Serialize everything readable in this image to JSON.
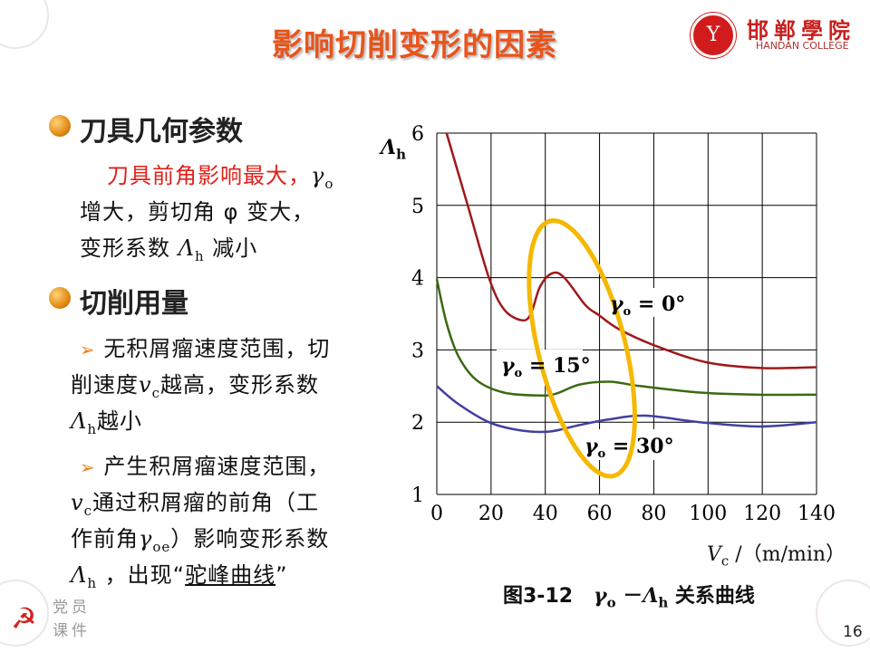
{
  "title": "影响切削变形的因素",
  "logo": {
    "cn": "邯郸學院",
    "en": "HANDAN COLLEGE"
  },
  "section1": {
    "heading": "刀具几何参数",
    "red_text": "刀具前角影响最大，",
    "gamma": "γ",
    "sub_o": "o",
    "line2": "增大，剪切角 φ 变大，",
    "line3a": "变形系数 ",
    "lambda": "Λ",
    "sub_h": "h",
    "line3b": " 减小"
  },
  "section2": {
    "heading": "切削用量",
    "arrow": "➢",
    "item1": {
      "a": " 无积屑瘤速度范围，切",
      "b1": "削速度",
      "v": "v",
      "sub_c": "c",
      "b2": "越高，变形系数",
      "lambda": "Λ",
      "sub_h": "h",
      "c": "越小"
    },
    "item2": {
      "a": " 产生积屑瘤速度范围，",
      "v": "v",
      "sub_c": "c",
      "b": "通过积屑瘤的前角（工",
      "c1": "作前角",
      "gamma": "γ",
      "sub_oe": "oe",
      "c2": "）影响变形系数",
      "lambda": "Λ",
      "sub_h": "h",
      "d1": " ，出现“",
      "d_u": "驼峰曲线",
      "d2": "”"
    }
  },
  "footer": {
    "party_line1": "党员",
    "party_line2": "课件",
    "page_number": "16"
  },
  "chart_data": {
    "type": "line",
    "title": "图3-12  γo －Λh 关系曲线",
    "caption_prefix": "图3-12",
    "caption_gamma": "γ",
    "caption_sub_o": "o",
    "caption_dash": " －",
    "caption_lambda": "Λ",
    "caption_sub_h": "h",
    "caption_rest": " 关系曲线",
    "xlabel": "Vc /（m/min）",
    "xlabel_v": "V",
    "xlabel_sub": "c",
    "xlabel_rest": " /（m/min）",
    "ylabel_main": "Λ",
    "ylabel_sub": "h",
    "xlim": [
      0,
      140
    ],
    "ylim": [
      1,
      6
    ],
    "xticks": [
      0,
      20,
      40,
      60,
      80,
      100,
      120,
      140
    ],
    "yticks": [
      1,
      2,
      3,
      4,
      5,
      6
    ],
    "grid": true,
    "series": [
      {
        "name": "γo = 0°",
        "color": "#a01818",
        "x": [
          3.6,
          11.4,
          19.2,
          24.8,
          31.4,
          34.7,
          38,
          42.5,
          47,
          54.8,
          59.8,
          67,
          80.4,
          99.3,
          119.4,
          140
        ],
        "y": [
          6.0,
          5.0,
          4.0,
          3.56,
          3.41,
          3.5,
          3.87,
          4.06,
          4.0,
          3.62,
          3.48,
          3.29,
          3.06,
          2.83,
          2.75,
          2.76
        ]
      },
      {
        "name": "γo = 15°",
        "color": "#3a6a10",
        "x": [
          0,
          3.6,
          8,
          14.7,
          24.7,
          37,
          43.6,
          52.6,
          63.7,
          74.8,
          97,
          119,
          140
        ],
        "y": [
          3.98,
          3.37,
          2.91,
          2.58,
          2.41,
          2.37,
          2.39,
          2.52,
          2.56,
          2.5,
          2.41,
          2.38,
          2.38
        ]
      },
      {
        "name": "γo = 30°",
        "color": "#4040a0",
        "x": [
          0,
          8,
          19.2,
          30.3,
          41.4,
          52.6,
          63.7,
          77,
          97,
          119,
          140
        ],
        "y": [
          2.5,
          2.25,
          2.0,
          1.89,
          1.87,
          1.96,
          2.04,
          2.09,
          2.0,
          1.94,
          2.0
        ]
      }
    ],
    "labels": [
      {
        "gamma": "γ",
        "sub": "o",
        "rest": " = 0°"
      },
      {
        "gamma": "γ",
        "sub": "o",
        "rest": " = 15°"
      },
      {
        "gamma": "γ",
        "sub": "o",
        "rest": " = 30°"
      }
    ],
    "highlight_color": "#f5b800"
  }
}
